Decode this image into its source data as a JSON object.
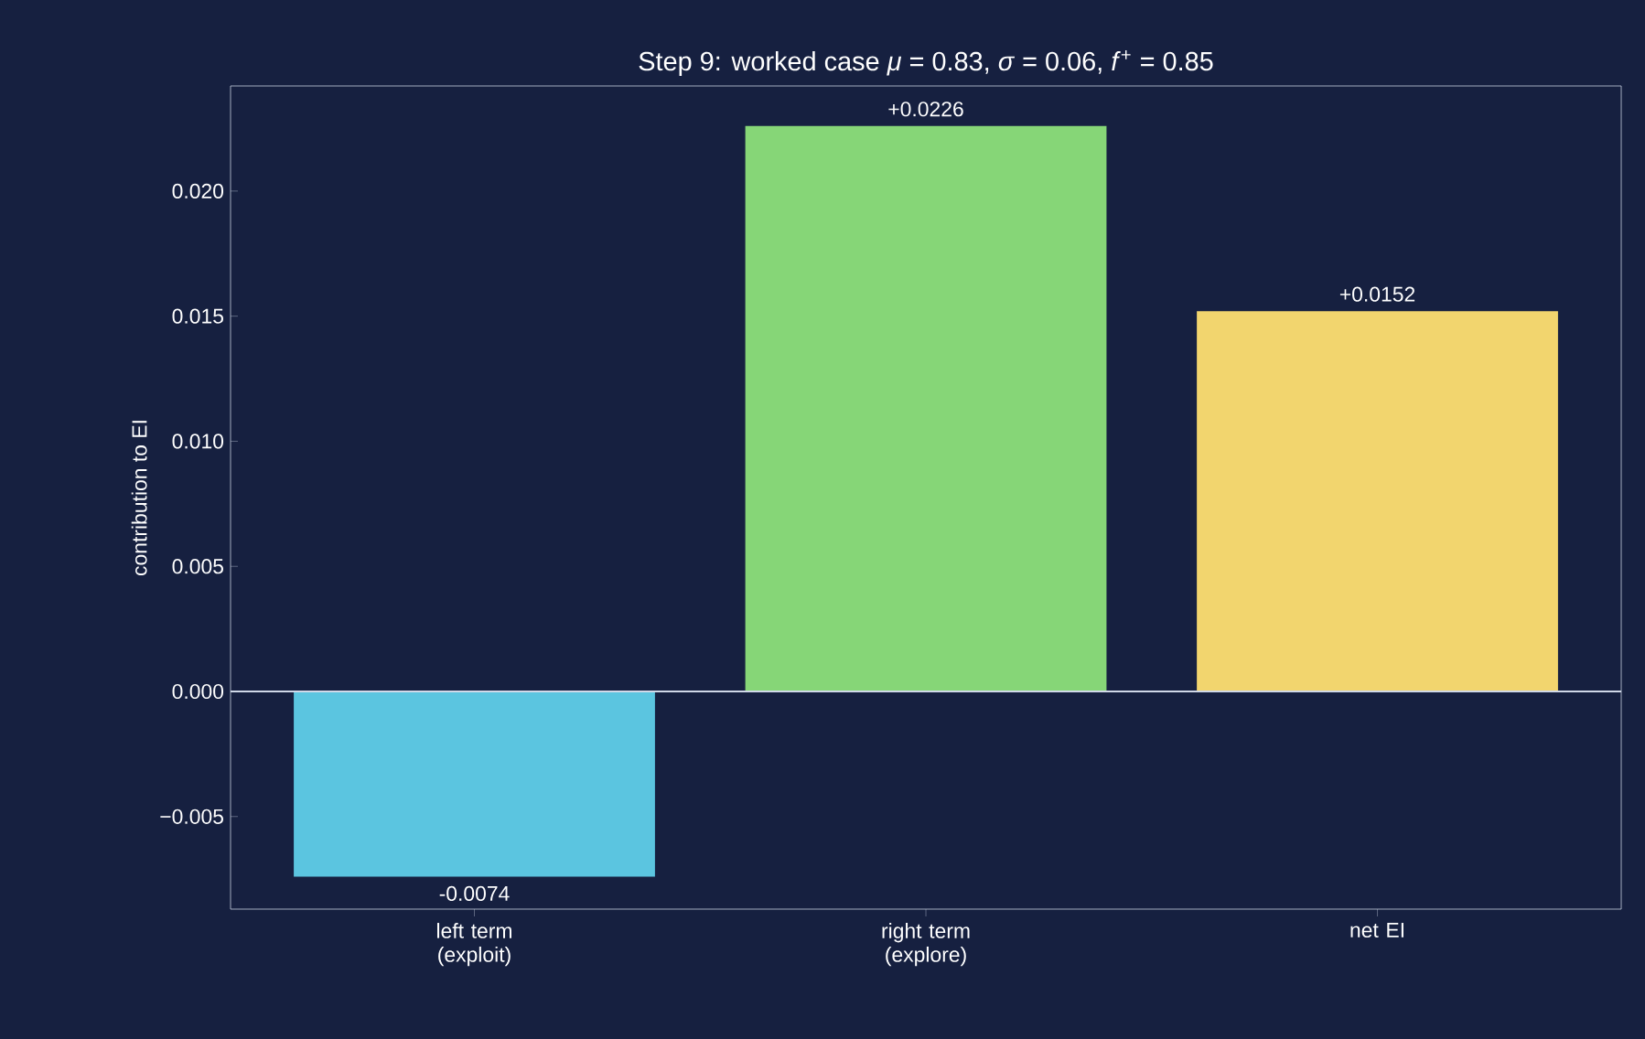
{
  "chart_data": {
    "type": "bar",
    "title": "Step 9: worked case  *μ* = 0.83,  *σ* = 0.06,  *f*$^{+}$ = 0.85",
    "ylabel": "contribution to EI",
    "categories": [
      "left term (exploit)",
      "right term (explore)",
      "net EI"
    ],
    "values": [
      -0.0074,
      0.0226,
      0.0152
    ],
    "colors": [
      "#5bc5e0",
      "#86d677",
      "#f2d56e"
    ],
    "value_labels": [
      "-0.0074",
      "+0.0226",
      "+0.0152"
    ],
    "ylim": [
      -0.0087,
      0.0242
    ],
    "yticks": [
      {
        "value": -0.005,
        "label": "−0.005"
      },
      {
        "value": 0,
        "label": "0.000"
      },
      {
        "value": 0.005,
        "label": "0.005"
      },
      {
        "value": 0.01,
        "label": "0.010"
      },
      {
        "value": 0.015,
        "label": "0.015"
      },
      {
        "value": 0.02,
        "label": "0.020"
      }
    ],
    "ref_lines": [
      {
        "axis": "y",
        "value": 0,
        "color": "#d0d8e8"
      }
    ]
  }
}
